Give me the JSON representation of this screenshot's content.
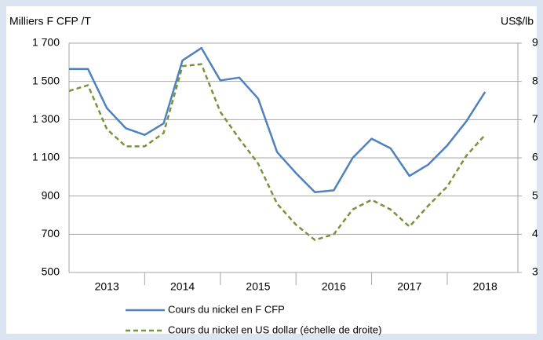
{
  "chart_data": {
    "type": "line",
    "y_label": "Milliers F CFP /T",
    "y2_label": "US$/lb",
    "year_labels": [
      "2013",
      "2014",
      "2015",
      "2016",
      "2017",
      "2018"
    ],
    "ylim": [
      500,
      1700
    ],
    "yticks": [
      500,
      700,
      900,
      {
        "value": 1100,
        "label": "1 100"
      },
      {
        "value": 1300,
        "label": "1 300"
      },
      {
        "value": 1500,
        "label": "1 500"
      },
      {
        "value": 1700,
        "label": "1 700"
      }
    ],
    "y2lim": [
      3,
      9
    ],
    "y2ticks": [
      3,
      4,
      5,
      6,
      7,
      8,
      9
    ],
    "grid": true,
    "series": [
      {
        "name": "Cours du nickel en F CFP",
        "color": "#4f81bd",
        "dash": false,
        "values": [
          1565,
          1565,
          1360,
          1255,
          1220,
          1280,
          1610,
          1675,
          1505,
          1520,
          1410,
          1130,
          1020,
          920,
          930,
          1100,
          1200,
          1150,
          1005,
          1065,
          1165,
          1290,
          1445
        ]
      },
      {
        "name": "Cours du nickel en US dollar (échelle de droite)",
        "color": "#77933c",
        "dash": true,
        "axis": "y2",
        "values": [
          7.75,
          7.9,
          6.75,
          6.3,
          6.3,
          6.65,
          8.4,
          8.45,
          7.2,
          6.5,
          5.85,
          4.8,
          4.25,
          3.85,
          4.0,
          4.65,
          4.9,
          4.65,
          4.2,
          4.75,
          5.25,
          6.05,
          6.6
        ]
      }
    ]
  }
}
